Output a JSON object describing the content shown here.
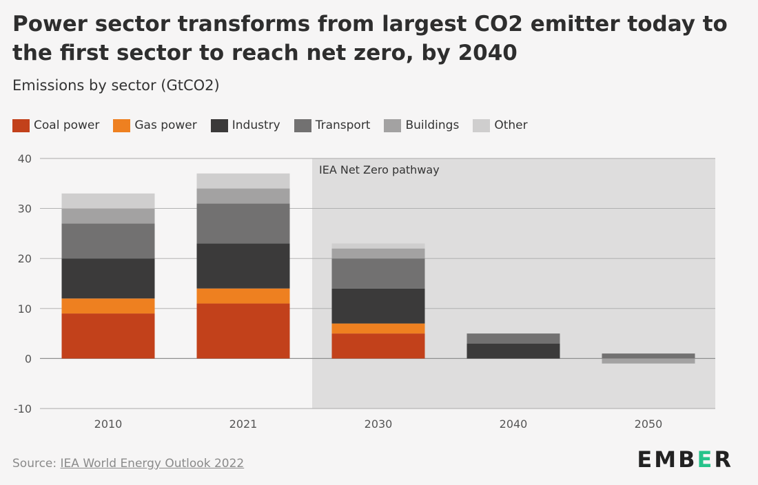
{
  "header": {
    "title": "Power sector transforms from largest CO2 emitter today to the first sector to reach net zero, by 2040",
    "subtitle": "Emissions by sector (GtCO2)"
  },
  "legend": [
    {
      "label": "Coal power",
      "color": "#c2411b"
    },
    {
      "label": "Gas power",
      "color": "#ee8020"
    },
    {
      "label": "Industry",
      "color": "#3b3a3a"
    },
    {
      "label": "Transport",
      "color": "#727171"
    },
    {
      "label": "Buildings",
      "color": "#a3a2a2"
    },
    {
      "label": "Other",
      "color": "#cfcece"
    }
  ],
  "chart_data": {
    "type": "bar",
    "stacked": true,
    "title": "Power sector transforms from largest CO2 emitter today to the first sector to reach net zero, by 2040",
    "ylabel": "Emissions by sector (GtCO2)",
    "xlabel": "",
    "categories": [
      "2010",
      "2021",
      "2030",
      "2040",
      "2050"
    ],
    "ylim": [
      -10,
      40
    ],
    "yticks": [
      40,
      30,
      20,
      10,
      0,
      -10
    ],
    "grid": true,
    "series": [
      {
        "name": "Coal power",
        "color": "#c2411b",
        "values": [
          9,
          11,
          5,
          0,
          0
        ]
      },
      {
        "name": "Gas power",
        "color": "#ee8020",
        "values": [
          3,
          3,
          2,
          0,
          0
        ]
      },
      {
        "name": "Industry",
        "color": "#3b3a3a",
        "values": [
          8,
          9,
          7,
          3,
          0
        ]
      },
      {
        "name": "Transport",
        "color": "#727171",
        "values": [
          7,
          8,
          6,
          2,
          1
        ]
      },
      {
        "name": "Buildings",
        "color": "#a3a2a2",
        "values": [
          3,
          3,
          2,
          0,
          -1
        ]
      },
      {
        "name": "Other",
        "color": "#cfcece",
        "values": [
          3,
          3,
          1,
          0,
          0
        ]
      }
    ],
    "shaded_region": {
      "label": "IEA Net Zero pathway",
      "from_category": "2030",
      "color": "#dedddd"
    }
  },
  "footer": {
    "source_prefix": "Source: ",
    "source_link": "IEA World Energy Outlook 2022",
    "logo_parts": [
      "EMB",
      "E",
      "R"
    ]
  }
}
